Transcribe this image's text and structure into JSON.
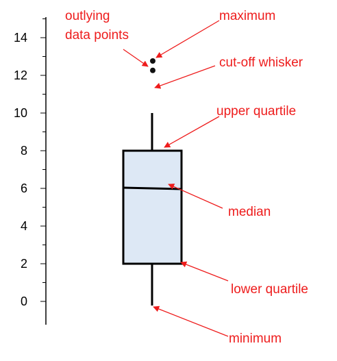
{
  "figure": {
    "y_axis": {
      "tick_labels": [
        "0",
        "2",
        "4",
        "6",
        "8",
        "10",
        "12",
        "14"
      ]
    },
    "boxplot": {
      "minimum": 0,
      "lower_quartile": 2,
      "median": 6,
      "upper_quartile": 8,
      "whisker_top": 10,
      "outliers": [
        12.3,
        12.8
      ]
    },
    "annotations": {
      "outliers_line1": "outlying",
      "outliers_line2": "data points",
      "maximum": "maximum",
      "cutoff_whisker": "cut-off whisker",
      "upper_quartile": "upper quartile",
      "median": "median",
      "lower_quartile": "lower quartile",
      "minimum": "minimum"
    },
    "colors": {
      "annotation_text": "#ee1c1c",
      "arrow": "#ee1c1c",
      "box_fill": "#dde8f5",
      "box_stroke": "#000000",
      "axis": "#000000"
    }
  }
}
